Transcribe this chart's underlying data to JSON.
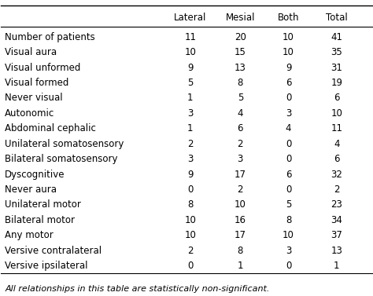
{
  "columns": [
    "Lateral",
    "Mesial",
    "Both",
    "Total"
  ],
  "rows": [
    [
      "Number of patients",
      "11",
      "20",
      "10",
      "41"
    ],
    [
      "Visual aura",
      "10",
      "15",
      "10",
      "35"
    ],
    [
      "Visual unformed",
      "9",
      "13",
      "9",
      "31"
    ],
    [
      "Visual formed",
      "5",
      "8",
      "6",
      "19"
    ],
    [
      "Never visual",
      "1",
      "5",
      "0",
      "6"
    ],
    [
      "Autonomic",
      "3",
      "4",
      "3",
      "10"
    ],
    [
      "Abdominal cephalic",
      "1",
      "6",
      "4",
      "11"
    ],
    [
      "Unilateral somatosensory",
      "2",
      "2",
      "0",
      "4"
    ],
    [
      "Bilateral somatosensory",
      "3",
      "3",
      "0",
      "6"
    ],
    [
      "Dyscognitive",
      "9",
      "17",
      "6",
      "32"
    ],
    [
      "Never aura",
      "0",
      "2",
      "0",
      "2"
    ],
    [
      "Unilateral motor",
      "8",
      "10",
      "5",
      "23"
    ],
    [
      "Bilateral motor",
      "10",
      "16",
      "8",
      "34"
    ],
    [
      "Any motor",
      "10",
      "17",
      "10",
      "37"
    ],
    [
      "Versive contralateral",
      "2",
      "8",
      "3",
      "13"
    ],
    [
      "Versive ipsilateral",
      "0",
      "1",
      "0",
      "1"
    ]
  ],
  "footnote": "All relationships in this table are statistically non-significant.",
  "text_color": "black",
  "font_size": 8.5,
  "header_font_size": 8.5
}
